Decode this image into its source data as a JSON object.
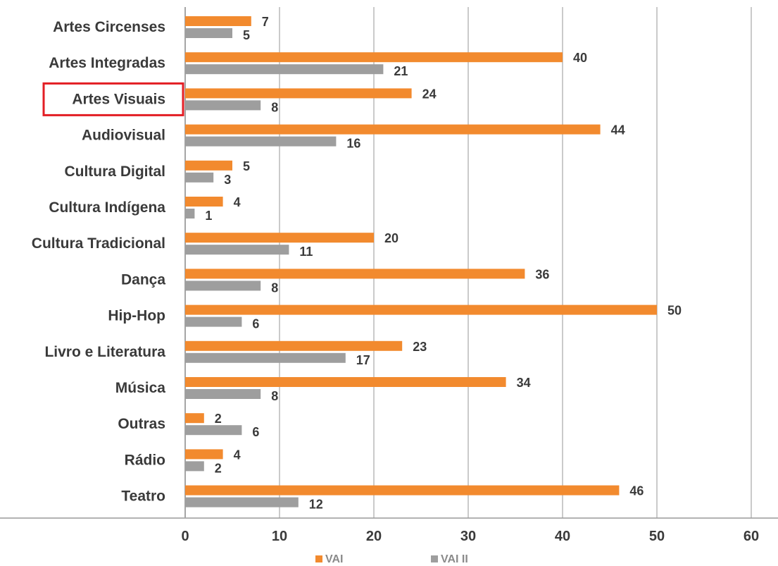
{
  "chart_data": {
    "type": "bar",
    "orientation": "horizontal",
    "categories": [
      "Artes Circenses",
      "Artes Integradas",
      "Artes Visuais",
      "Audiovisual",
      "Cultura Digital",
      "Cultura Indígena",
      "Cultura Tradicional",
      "Dança",
      "Hip-Hop",
      "Livro e Literatura",
      "Música",
      "Outras",
      "Rádio",
      "Teatro"
    ],
    "series": [
      {
        "name": "VAI",
        "color": "#f28a2e",
        "values": [
          7,
          40,
          24,
          44,
          5,
          4,
          20,
          36,
          50,
          23,
          34,
          2,
          4,
          46
        ]
      },
      {
        "name": "VAI II",
        "color": "#9e9e9e",
        "values": [
          5,
          21,
          8,
          16,
          3,
          1,
          11,
          8,
          6,
          17,
          8,
          6,
          2,
          12
        ]
      }
    ],
    "x_ticks": [
      "0",
      "10",
      "20",
      "30",
      "40",
      "50",
      "60"
    ],
    "xlim": [
      0,
      60
    ],
    "grid": true,
    "legend_position": "bottom",
    "highlighted_category": "Artes Visuais",
    "highlight_color": "#e31e24",
    "title": "",
    "xlabel": "",
    "ylabel": ""
  }
}
